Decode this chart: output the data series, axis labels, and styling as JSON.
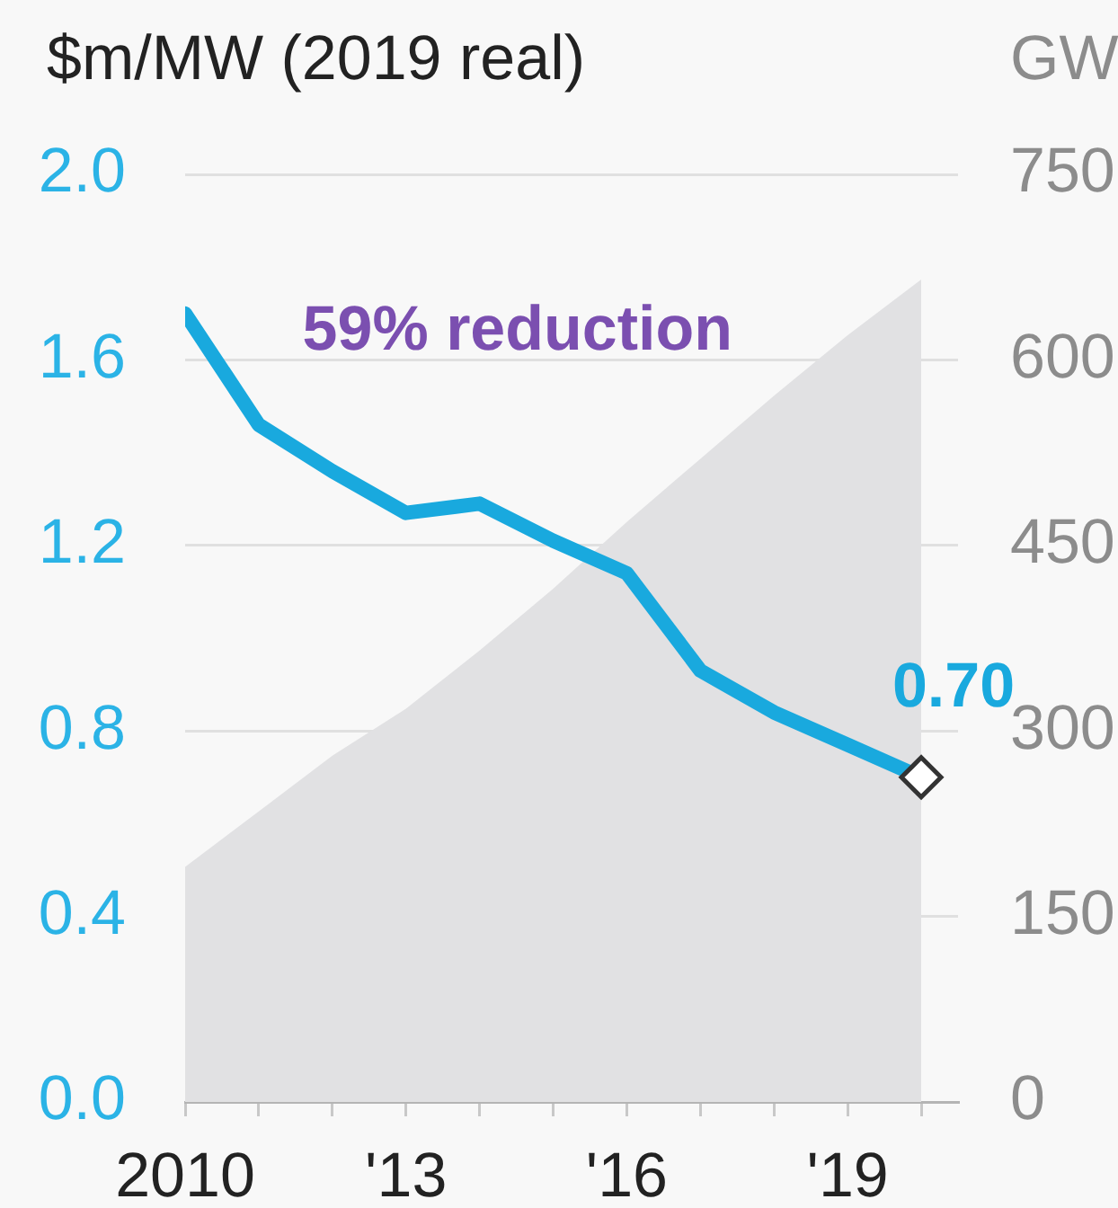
{
  "chart_data": {
    "type": "line",
    "ylabel": "$m/MW (2019 real)",
    "y2label": "GW",
    "annotations": [
      "59% reduction"
    ],
    "x": [
      2010,
      2011,
      2012,
      2013,
      2014,
      2015,
      2016,
      2017,
      2018,
      2019,
      2020
    ],
    "series": [
      {
        "type": "area",
        "axis": "y2",
        "color": "#e1e1e3",
        "values": [
          190,
          235,
          280,
          318,
          365,
          415,
          469,
          520,
          571,
          620,
          665
        ]
      },
      {
        "type": "line",
        "color": "#19a9de",
        "values": [
          1.7,
          1.46,
          1.36,
          1.27,
          1.29,
          1.21,
          1.14,
          0.93,
          0.84,
          0.77,
          0.7
        ],
        "value_labels": [
          null,
          null,
          null,
          null,
          null,
          null,
          null,
          null,
          null,
          null,
          "0.70"
        ]
      },
      {
        "type": "scatter",
        "x": [
          2020
        ],
        "values": [
          0.7
        ],
        "color": "#333333",
        "marker": "diamond"
      }
    ],
    "xlim": [
      2010,
      2020.5
    ],
    "xticks": [
      2010,
      {
        "value": 2011,
        "label": null
      },
      {
        "value": 2012,
        "label": null
      },
      {
        "value": 2013,
        "label": "'13"
      },
      {
        "value": 2014,
        "label": null
      },
      {
        "value": 2015,
        "label": null
      },
      {
        "value": 2016,
        "label": "'16"
      },
      {
        "value": 2017,
        "label": null
      },
      {
        "value": 2018,
        "label": null
      },
      {
        "value": 2019,
        "label": "'19"
      },
      {
        "value": 2020,
        "label": null
      }
    ],
    "ylim": [
      0,
      2
    ],
    "yticks": [
      {
        "value": 0,
        "label": "0.0"
      },
      0.4,
      0.8,
      1.2,
      1.6,
      {
        "value": 2,
        "label": "2.0"
      }
    ],
    "y2lim": [
      0,
      750
    ],
    "y2ticks": [
      0,
      150,
      300,
      450,
      600,
      750
    ],
    "grid": "y"
  }
}
